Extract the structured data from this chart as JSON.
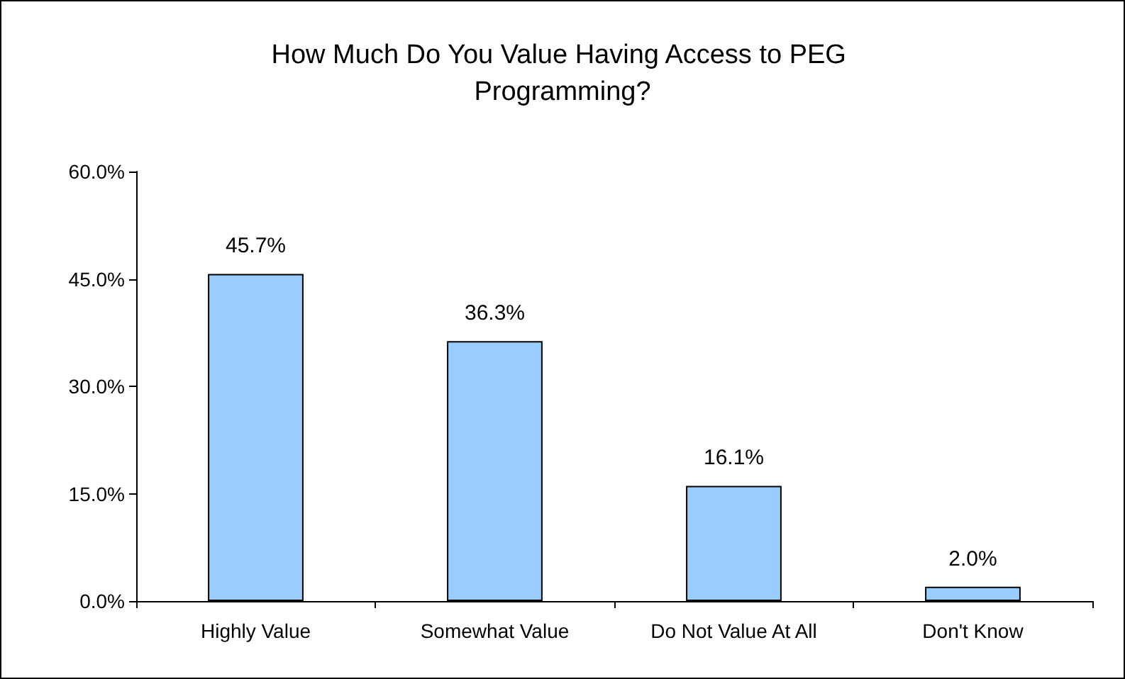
{
  "chart_data": {
    "type": "bar",
    "title": "How Much Do You Value Having Access to PEG Programming?",
    "categories": [
      "Highly Value",
      "Somewhat Value",
      "Do Not Value At All",
      "Don't Know"
    ],
    "values": [
      45.7,
      36.3,
      16.1,
      2.0
    ],
    "value_labels": [
      "45.7%",
      "36.3%",
      "16.1%",
      "2.0%"
    ],
    "color": "#99ccff",
    "ylim": [
      0,
      60
    ],
    "yticks": [
      {
        "value": 0,
        "label": "0.0%"
      },
      {
        "value": 15,
        "label": "15.0%"
      },
      {
        "value": 30,
        "label": "30.0%"
      },
      {
        "value": 45,
        "label": "45.0%"
      },
      {
        "value": 60,
        "label": "60.0%"
      }
    ],
    "grid": false
  }
}
